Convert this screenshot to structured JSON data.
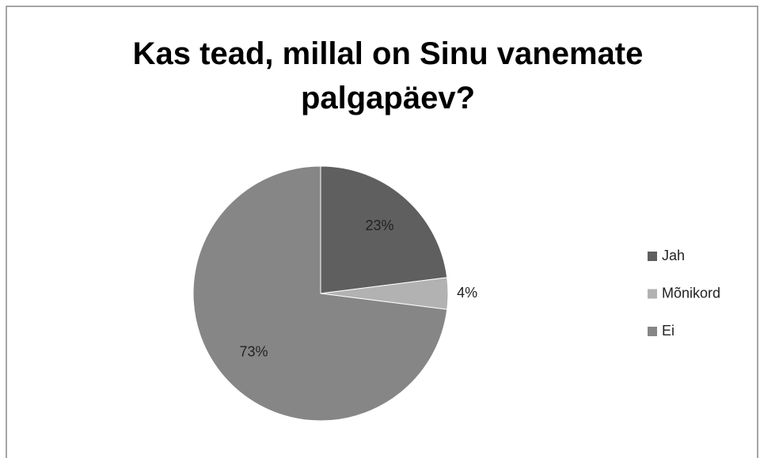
{
  "chart_data": {
    "type": "pie",
    "title": "Kas tead, millal on Sinu vanemate palgapäev?",
    "categories": [
      "Jah",
      "Mõnikord",
      "Ei"
    ],
    "values": [
      23,
      4,
      73
    ],
    "value_labels": [
      "23%",
      "4%",
      "73%"
    ],
    "colors": [
      "#5f5f5f",
      "#b2b2b2",
      "#868686"
    ],
    "legend": "right"
  }
}
